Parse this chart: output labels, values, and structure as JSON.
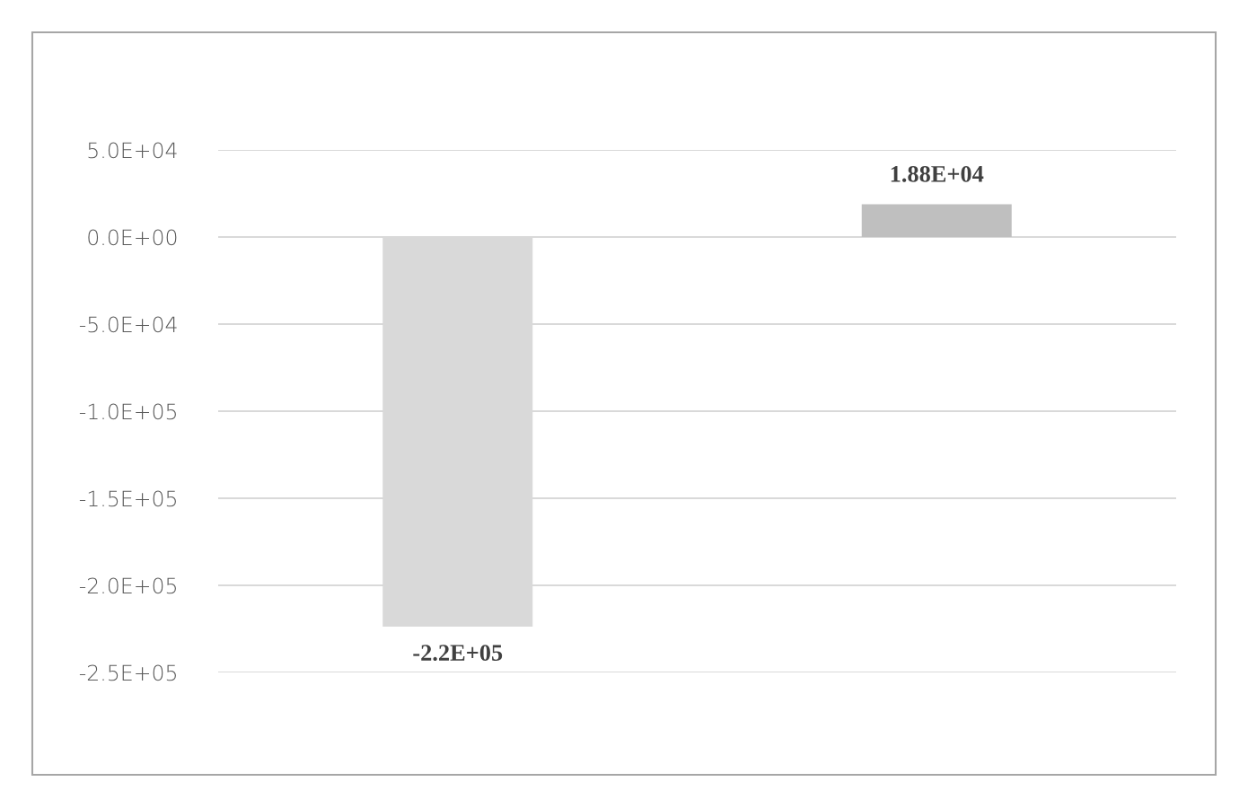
{
  "chart_data": {
    "type": "bar",
    "categories": [
      null,
      null
    ],
    "values": [
      -223700,
      18800
    ],
    "value_labels": [
      "-2.2E+05",
      "1.88E+04"
    ],
    "colors": [
      "#d9d9d9",
      "#bfbfbf"
    ],
    "ylim": [
      -250000,
      50000
    ],
    "yticks": [
      {
        "value": 50000,
        "label": "5.0E+04"
      },
      {
        "value": 0,
        "label": "0.0E+00"
      },
      {
        "value": -50000,
        "label": "-5.0E+04"
      },
      {
        "value": -100000,
        "label": "-1.0E+05"
      },
      {
        "value": -150000,
        "label": "-1.5E+05"
      },
      {
        "value": -200000,
        "label": "-2.0E+05"
      },
      {
        "value": -250000,
        "label": "-2.5E+05"
      }
    ],
    "grid": "y",
    "tick_labels": "y"
  }
}
